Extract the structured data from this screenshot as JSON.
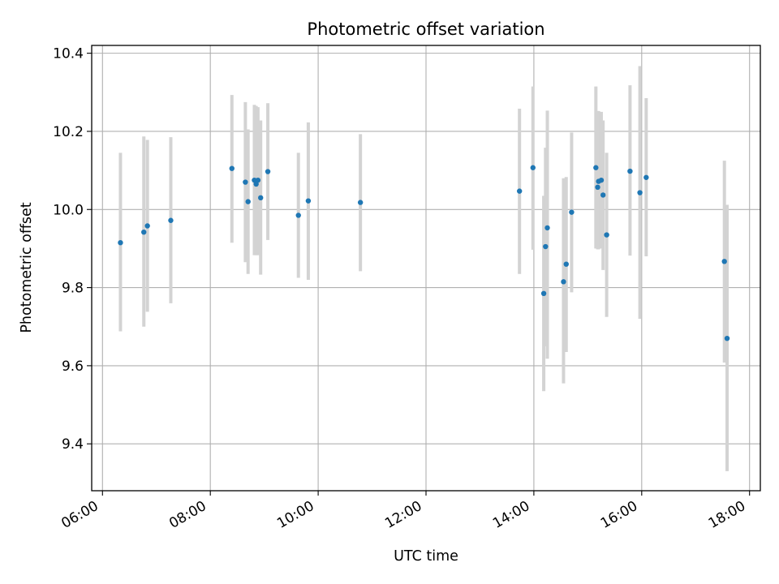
{
  "chart_data": {
    "type": "scatter",
    "title": "Photometric offset variation",
    "xlabel": "UTC time",
    "ylabel": "Photometric offset",
    "x_is_time": true,
    "xlim": [
      "05:48",
      "18:12"
    ],
    "ylim": [
      9.28,
      10.42
    ],
    "x_ticks": [
      "06:00",
      "08:00",
      "10:00",
      "12:00",
      "14:00",
      "16:00",
      "18:00"
    ],
    "y_ticks": [
      9.4,
      9.6,
      9.8,
      10.0,
      10.2,
      10.4
    ],
    "grid": true,
    "point_color": "#1f77b4",
    "errorbar_color": "#d3d3d3",
    "points": [
      {
        "t": "06:20",
        "y": 9.915,
        "lo": 9.688,
        "hi": 10.145
      },
      {
        "t": "06:46",
        "y": 9.942,
        "lo": 9.7,
        "hi": 10.187
      },
      {
        "t": "06:50",
        "y": 9.958,
        "lo": 9.738,
        "hi": 10.178
      },
      {
        "t": "07:16",
        "y": 9.972,
        "lo": 9.76,
        "hi": 10.185
      },
      {
        "t": "08:24",
        "y": 10.105,
        "lo": 9.915,
        "hi": 10.293
      },
      {
        "t": "08:39",
        "y": 10.07,
        "lo": 9.865,
        "hi": 10.275
      },
      {
        "t": "08:42",
        "y": 10.02,
        "lo": 9.835,
        "hi": 10.205
      },
      {
        "t": "08:49",
        "y": 10.075,
        "lo": 9.883,
        "hi": 10.268
      },
      {
        "t": "08:51",
        "y": 10.065,
        "lo": 9.883,
        "hi": 10.265
      },
      {
        "t": "08:53",
        "y": 10.075,
        "lo": 9.883,
        "hi": 10.262
      },
      {
        "t": "08:56",
        "y": 10.03,
        "lo": 9.833,
        "hi": 10.228
      },
      {
        "t": "09:04",
        "y": 10.097,
        "lo": 9.922,
        "hi": 10.272
      },
      {
        "t": "09:38",
        "y": 9.985,
        "lo": 9.825,
        "hi": 10.145
      },
      {
        "t": "09:49",
        "y": 10.022,
        "lo": 9.82,
        "hi": 10.223
      },
      {
        "t": "10:47",
        "y": 10.018,
        "lo": 9.842,
        "hi": 10.193
      },
      {
        "t": "13:44",
        "y": 10.047,
        "lo": 9.835,
        "hi": 10.258
      },
      {
        "t": "13:59",
        "y": 10.107,
        "lo": 9.897,
        "hi": 10.315
      },
      {
        "t": "14:11",
        "y": 9.785,
        "lo": 9.535,
        "hi": 10.035
      },
      {
        "t": "14:13",
        "y": 9.905,
        "lo": 9.65,
        "hi": 10.158
      },
      {
        "t": "14:15",
        "y": 9.953,
        "lo": 9.618,
        "hi": 10.253
      },
      {
        "t": "14:33",
        "y": 9.815,
        "lo": 9.555,
        "hi": 10.08
      },
      {
        "t": "14:36",
        "y": 9.86,
        "lo": 9.635,
        "hi": 10.083
      },
      {
        "t": "14:42",
        "y": 9.993,
        "lo": 9.788,
        "hi": 10.197
      },
      {
        "t": "15:09",
        "y": 10.107,
        "lo": 9.9,
        "hi": 10.315
      },
      {
        "t": "15:11",
        "y": 10.057,
        "lo": 9.898,
        "hi": 10.252
      },
      {
        "t": "15:12",
        "y": 10.072,
        "lo": 9.898,
        "hi": 10.252
      },
      {
        "t": "15:15",
        "y": 10.075,
        "lo": 9.9,
        "hi": 10.25
      },
      {
        "t": "15:17",
        "y": 10.037,
        "lo": 9.845,
        "hi": 10.228
      },
      {
        "t": "15:21",
        "y": 9.935,
        "lo": 9.725,
        "hi": 10.145
      },
      {
        "t": "15:47",
        "y": 10.098,
        "lo": 9.882,
        "hi": 10.318
      },
      {
        "t": "15:58",
        "y": 10.043,
        "lo": 9.72,
        "hi": 10.367
      },
      {
        "t": "16:05",
        "y": 10.082,
        "lo": 9.88,
        "hi": 10.285
      },
      {
        "t": "17:32",
        "y": 9.867,
        "lo": 9.608,
        "hi": 10.125
      },
      {
        "t": "17:35",
        "y": 9.67,
        "lo": 9.33,
        "hi": 10.012
      }
    ]
  }
}
